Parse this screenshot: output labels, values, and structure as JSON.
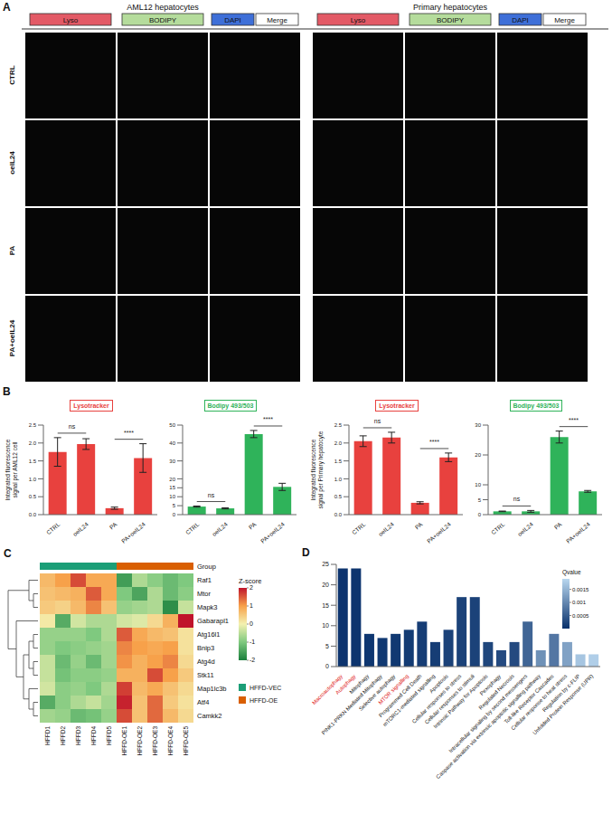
{
  "panel_A": {
    "letter": "A",
    "groups": [
      "AML12 hepatocytes",
      "Primary hepatocytes"
    ],
    "channels": [
      "Lyso",
      "BODIPY",
      "DAPI",
      "Merge"
    ],
    "rows": [
      "CTRL",
      "oeIL24",
      "PA",
      "PA+oeIL24"
    ]
  },
  "chart_data": [
    {
      "panel": "B",
      "type": "bar",
      "title": "Lysotracker",
      "y_label": "Integrated fluorescence signal per AML12 cell",
      "categories": [
        "CTRL",
        "oeIL24",
        "PA",
        "PA+oeIL24"
      ],
      "values": [
        1.75,
        1.97,
        0.18,
        1.58
      ],
      "errors": [
        0.4,
        0.15,
        0.03,
        0.4
      ],
      "color": "#e8413e",
      "ylim": [
        0,
        2.5
      ],
      "yticks": [
        {
          "value": 0,
          "label": "0.0"
        },
        0.5,
        {
          "value": 1,
          "label": "1.0"
        },
        1.5,
        {
          "value": 2,
          "label": "2.0"
        },
        2.5
      ],
      "comparisons": [
        {
          "categories": [
            "CTRL",
            "oeIL24"
          ],
          "label": "ns"
        },
        {
          "categories": [
            "PA",
            "PA+oeIL24"
          ],
          "label": "****"
        }
      ]
    },
    {
      "panel": "B",
      "type": "bar",
      "title": "Bodipy 493/503",
      "categories": [
        "CTRL",
        "oeIL24",
        "PA",
        "PA+oeIL24"
      ],
      "values": [
        4.5,
        3.5,
        45,
        15.5
      ],
      "errors": [
        0.3,
        0.3,
        2,
        2
      ],
      "color": "#2fb35a",
      "ylim": [
        0,
        50
      ],
      "yticks": [
        0,
        5,
        10,
        15,
        20,
        30,
        40,
        50
      ],
      "comparisons": [
        {
          "categories": [
            "CTRL",
            "oeIL24"
          ],
          "label": "ns"
        },
        {
          "categories": [
            "PA",
            "PA+oeIL24"
          ],
          "label": "****"
        }
      ]
    },
    {
      "panel": "B",
      "type": "bar",
      "title": "Lysotracker",
      "y_label": "Integrated fluorescence signal per Primary hepatocyte",
      "categories": [
        "CTRL",
        "oeIL24",
        "PA",
        "PA+oeIL24"
      ],
      "values": [
        2.05,
        2.15,
        0.33,
        1.6
      ],
      "errors": [
        0.15,
        0.15,
        0.03,
        0.12
      ],
      "color": "#e8413e",
      "ylim": [
        0,
        2.5
      ],
      "yticks": [
        {
          "value": 0,
          "label": "0.0"
        },
        0.5,
        {
          "value": 1,
          "label": "1.0"
        },
        1.5,
        {
          "value": 2,
          "label": "2.0"
        },
        2.5
      ],
      "comparisons": [
        {
          "categories": [
            "CTRL",
            "oeIL24"
          ],
          "label": "ns"
        },
        {
          "categories": [
            "PA",
            "PA+oeIL24"
          ],
          "label": "****"
        }
      ]
    },
    {
      "panel": "B",
      "type": "bar",
      "title": "Bodipy 493/503",
      "categories": [
        "CTRL",
        "oeIL24",
        "PA",
        "PA+oeIL24"
      ],
      "values": [
        1.1,
        1.1,
        26,
        7.8
      ],
      "errors": [
        0.1,
        0.3,
        2,
        0.3
      ],
      "color": "#2fb35a",
      "ylim": [
        0,
        30
      ],
      "yticks": [
        0,
        5,
        10,
        20,
        30
      ],
      "comparisons": [
        {
          "categories": [
            "CTRL",
            "oeIL24"
          ],
          "label": "ns"
        },
        {
          "categories": [
            "PA",
            "PA+oeIL24"
          ],
          "label": "****"
        }
      ]
    },
    {
      "panel": "C",
      "type": "heatmap",
      "rows": [
        "Raf1",
        "Mtor",
        "Mapk3",
        "Gabarapl1",
        "Atg16l1",
        "Bnip3",
        "Atg4d",
        "Stk11",
        "Map1lc3b",
        "Atf4",
        "Camkk2"
      ],
      "columns": [
        "HFFD1",
        "HFFD2",
        "HFFD3",
        "HFFD4",
        "HFFD5",
        "HFFD-OE1",
        "HFFD-OE2",
        "HFFD-OE3",
        "HFFD-OE4",
        "HFFD-OE5"
      ],
      "cells": [
        [
          0.7,
          1.0,
          1.6,
          0.9,
          0.9,
          -1.6,
          -0.6,
          -0.9,
          -1.2,
          -1.0
        ],
        [
          0.6,
          0.7,
          0.8,
          1.5,
          0.9,
          -1.0,
          -1.5,
          -0.6,
          -1.2,
          -0.9
        ],
        [
          0.5,
          0.4,
          0.7,
          1.2,
          0.6,
          -0.8,
          -0.7,
          -0.6,
          -1.8,
          -0.4
        ],
        [
          0.1,
          -1.4,
          -0.3,
          -0.6,
          -0.6,
          -0.3,
          -0.2,
          0.3,
          0.8,
          2.0
        ],
        [
          -0.8,
          -0.8,
          -0.8,
          -1.0,
          -0.6,
          1.5,
          0.9,
          0.7,
          0.6,
          0.2
        ],
        [
          -0.8,
          -1.0,
          -0.9,
          -0.8,
          -0.7,
          1.2,
          1.0,
          0.9,
          1.0,
          0.2
        ],
        [
          -0.4,
          -1.2,
          -0.8,
          -1.2,
          -0.7,
          1.1,
          0.8,
          1.0,
          1.2,
          0.3
        ],
        [
          -0.4,
          -1.1,
          -0.9,
          -0.9,
          -0.8,
          0.8,
          0.8,
          1.6,
          1.0,
          0.5
        ],
        [
          -0.3,
          -0.9,
          -0.8,
          -1.0,
          -0.6,
          1.7,
          0.7,
          0.9,
          0.6,
          0.3
        ],
        [
          -1.4,
          -0.9,
          -0.6,
          -0.4,
          -0.7,
          1.9,
          0.6,
          1.4,
          0.5,
          0.2
        ],
        [
          -0.7,
          -0.8,
          -1.2,
          -1.1,
          -0.8,
          1.6,
          0.6,
          1.4,
          0.7,
          0.3
        ]
      ],
      "groups": {
        "title": "Group",
        "names": [
          "HFFD-VEC",
          "HFFD-OE"
        ],
        "colors": [
          "#1b9e77",
          "#d95f02"
        ],
        "column_groups": [
          0,
          0,
          0,
          0,
          0,
          1,
          1,
          1,
          1,
          1
        ]
      },
      "colorbar": {
        "title": "Z-score",
        "range": [
          -2,
          2
        ],
        "ticks": [
          -2,
          -1,
          0,
          1,
          2
        ],
        "colors": [
          "#1a7f3c",
          "#7fc97f",
          "#f4f1b0",
          "#f7a14a",
          "#c0142b"
        ]
      }
    },
    {
      "panel": "D",
      "type": "bar",
      "categories": [
        "Macroautophagy",
        "Autophagy",
        "Mitophagy",
        "PINK1-PRKN Mediated Mitophagy",
        "Selective autophagy",
        "MTOR signalling",
        "Programmed Cell Death",
        "mTORC1-mediated signalling",
        "Apoptosis",
        "Cellular responses to stress",
        "Cellular responses to stimuli",
        "Intrinsic Pathway for Apoptosis",
        "Pexophagy",
        "Regulated Necrosis",
        "Intracellular signaling by second messengers",
        "Caspase activation via extrinsic apoptotic signalling pathway",
        "Toll-like Receptor Cascades",
        "Cellular response to heat stress",
        "Regulation by c-FLIP",
        "Unfolded Protein Response (UPR)"
      ],
      "values": [
        24,
        24,
        8,
        7,
        8,
        9,
        11,
        6,
        9,
        17,
        17,
        6,
        4,
        6,
        11,
        4,
        8,
        6,
        3,
        3
      ],
      "qvalues": [
        5e-05,
        5e-05,
        8e-05,
        0.0001,
        0.0001,
        0.00012,
        0.00015,
        0.00015,
        0.0002,
        0.0002,
        0.0002,
        0.00025,
        0.0003,
        0.0003,
        0.0006,
        0.0011,
        0.0008,
        0.0013,
        0.0017,
        0.0018
      ],
      "highlighted": [
        "Macroautophagy",
        "Autophagy",
        "MTOR signalling"
      ],
      "ylim": [
        0,
        25
      ],
      "yticks": [
        0,
        5,
        10,
        15,
        20,
        25
      ],
      "colorbar": {
        "title": "Qvalue",
        "range": [
          0,
          0.0019
        ],
        "ticks": [
          0.0005,
          0.001,
          0.0015
        ],
        "colors": [
          "#08306b",
          "#b9d7ef"
        ]
      }
    }
  ]
}
